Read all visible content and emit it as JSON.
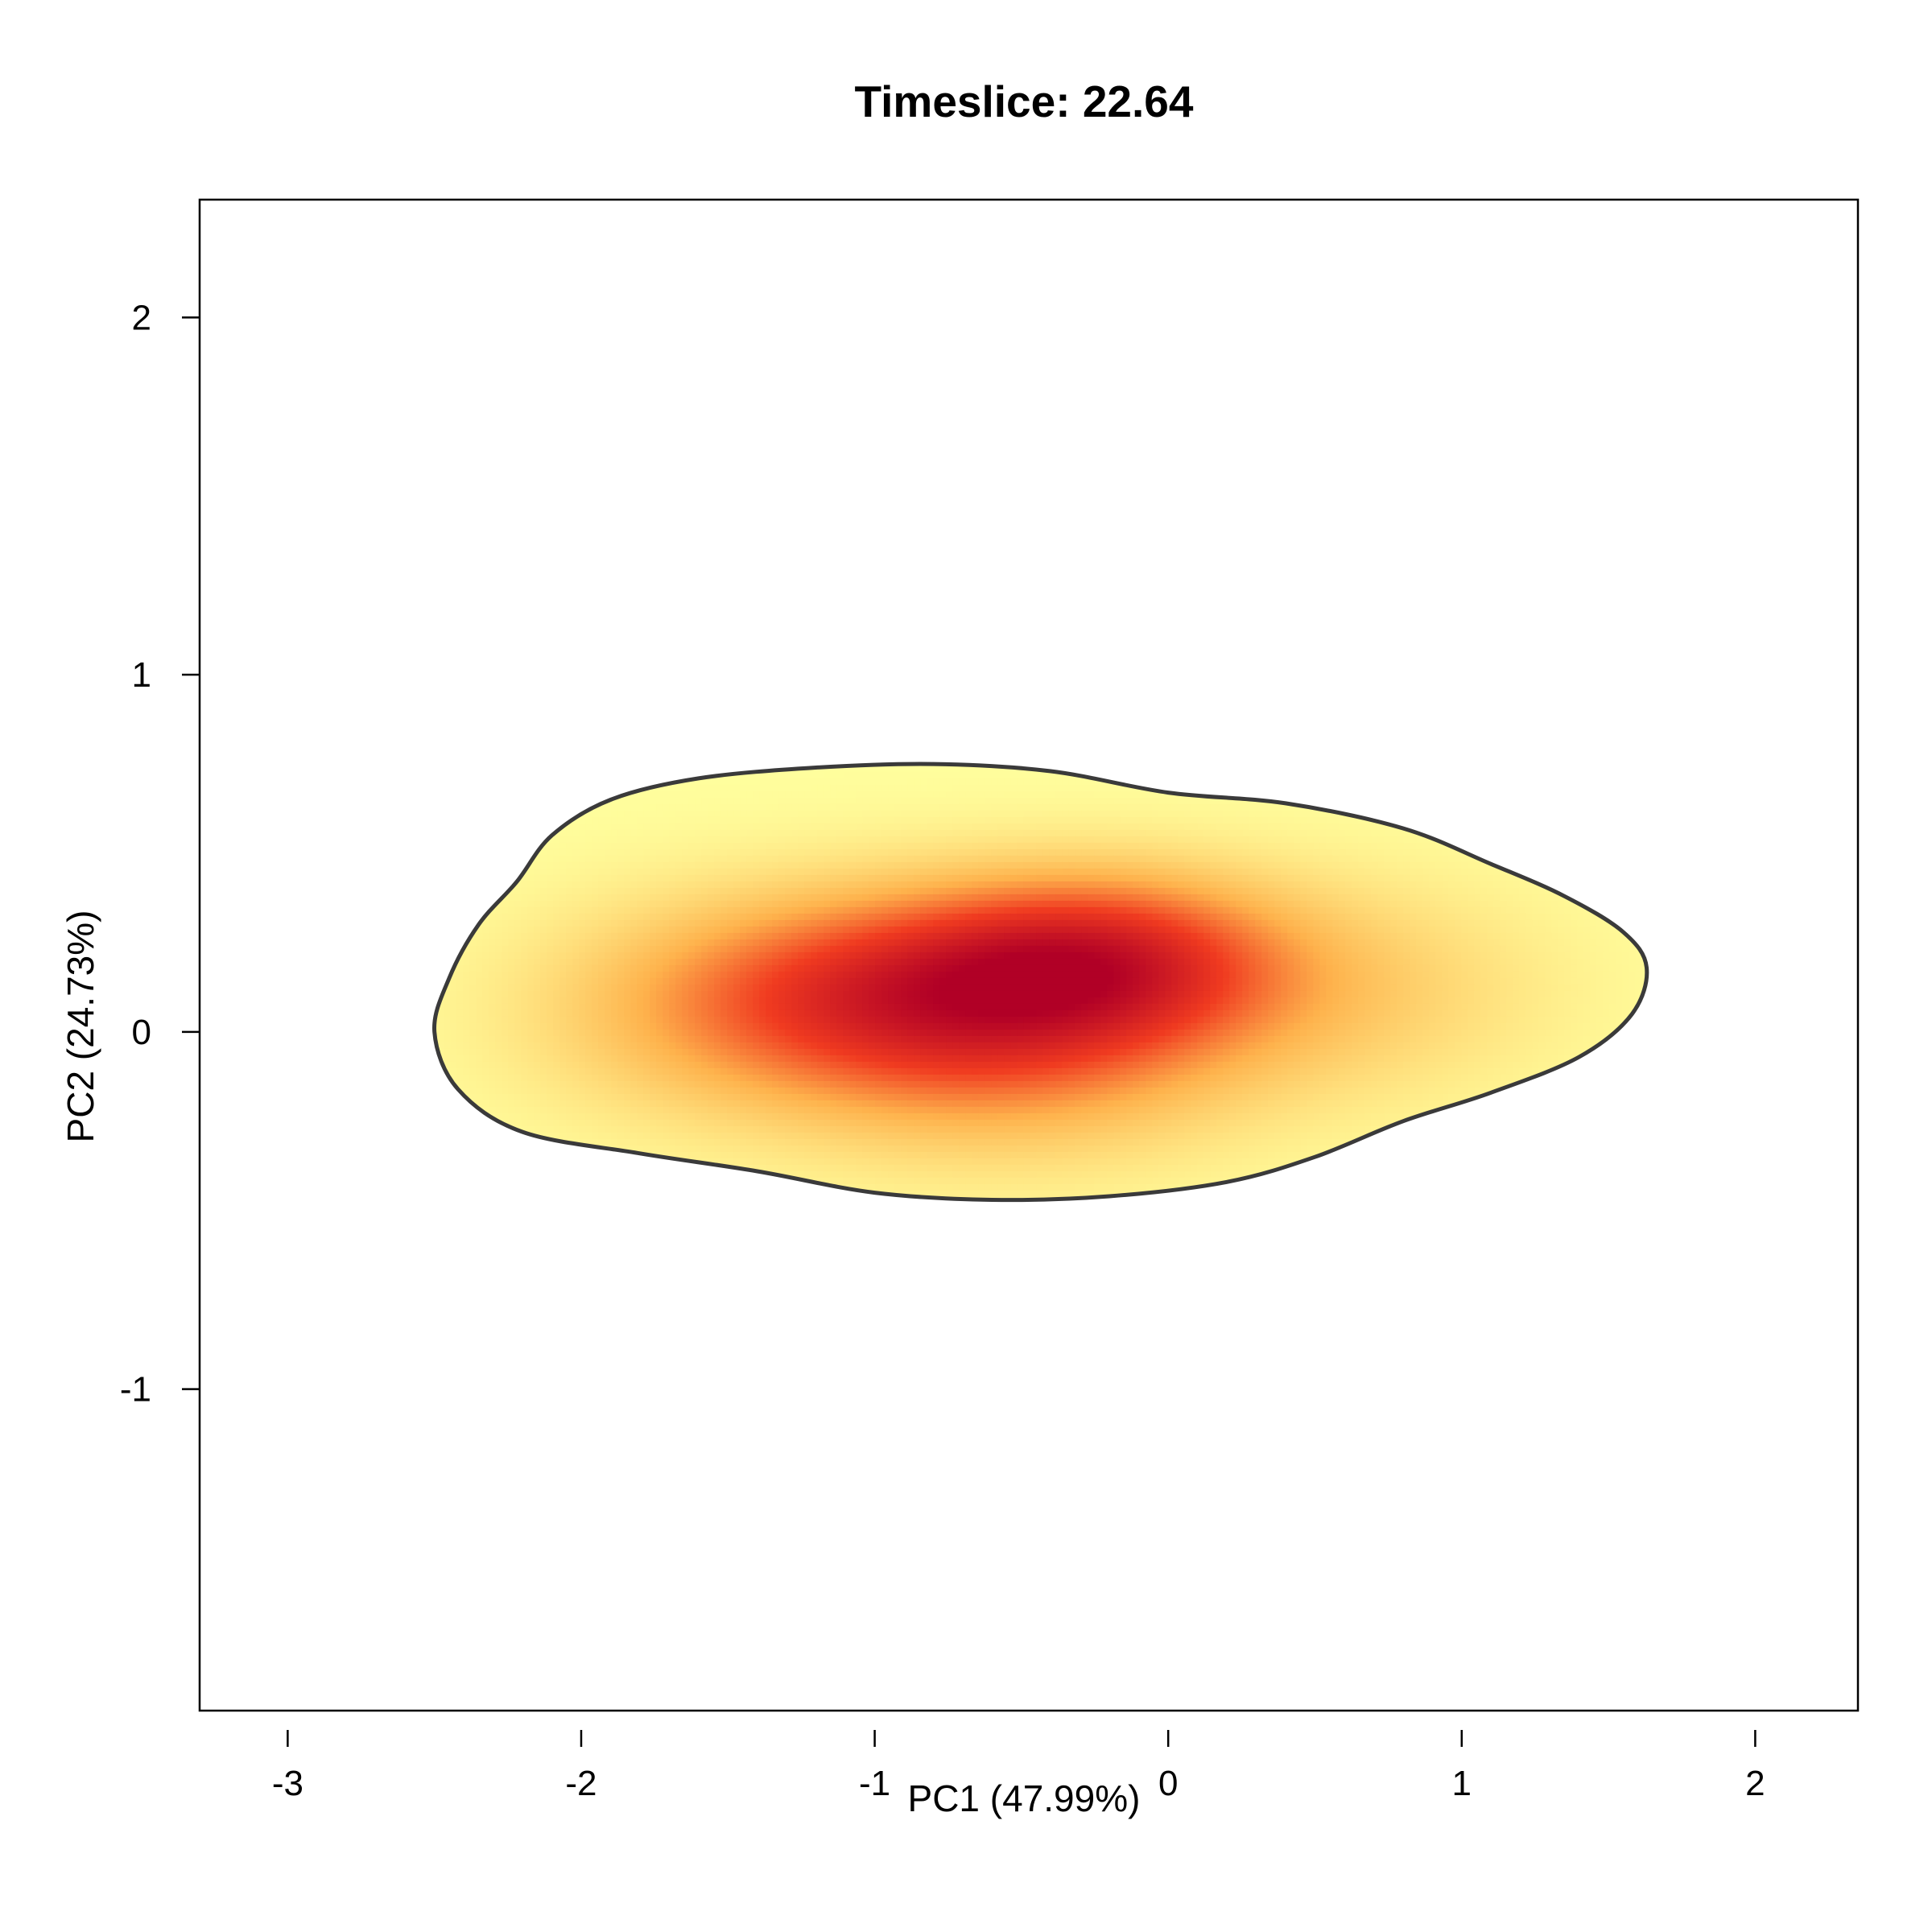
{
  "chart_data": {
    "type": "heatmap",
    "title": "Timeslice: 22.64",
    "xlabel": "PC1 (47.99%)",
    "ylabel": "PC2 (24.73%)",
    "xlim": [
      -3.3,
      2.35
    ],
    "ylim": [
      -1.9,
      2.33
    ],
    "x_ticks": [
      -3,
      -2,
      -1,
      0,
      1,
      2
    ],
    "x_tick_labels": [
      "-3",
      "-2",
      "-1",
      "0",
      "1",
      "2"
    ],
    "y_ticks": [
      -1,
      0,
      1,
      2
    ],
    "y_tick_labels": [
      "-1",
      "0",
      "1",
      "2"
    ],
    "grid": false,
    "legend": "none",
    "density_peak": {
      "x": -0.25,
      "y": 0.2
    },
    "density_components": [
      {
        "x": -0.25,
        "y": 0.2,
        "sx": 0.42,
        "sy": 0.16,
        "weight": 1.0
      },
      {
        "x": -0.95,
        "y": 0.12,
        "sx": 0.5,
        "sy": 0.18,
        "weight": 0.8
      },
      {
        "x": -0.55,
        "y": -0.05,
        "sx": 0.55,
        "sy": 0.2,
        "weight": 0.55
      },
      {
        "x": 0.55,
        "y": 0.12,
        "sx": 0.5,
        "sy": 0.2,
        "weight": 0.25
      },
      {
        "x": -1.6,
        "y": 0.05,
        "sx": 0.45,
        "sy": 0.2,
        "weight": 0.25
      }
    ],
    "outer_contour": [
      [
        -2.5,
        0.0
      ],
      [
        -2.45,
        0.15
      ],
      [
        -2.35,
        0.3
      ],
      [
        -2.22,
        0.42
      ],
      [
        -2.1,
        0.55
      ],
      [
        -1.9,
        0.65
      ],
      [
        -1.6,
        0.71
      ],
      [
        -1.2,
        0.74
      ],
      [
        -0.8,
        0.75
      ],
      [
        -0.4,
        0.73
      ],
      [
        0.0,
        0.67
      ],
      [
        0.4,
        0.64
      ],
      [
        0.8,
        0.57
      ],
      [
        1.1,
        0.47
      ],
      [
        1.35,
        0.38
      ],
      [
        1.55,
        0.28
      ],
      [
        1.63,
        0.18
      ],
      [
        1.58,
        0.05
      ],
      [
        1.4,
        -0.07
      ],
      [
        1.1,
        -0.17
      ],
      [
        0.8,
        -0.25
      ],
      [
        0.5,
        -0.35
      ],
      [
        0.2,
        -0.42
      ],
      [
        -0.2,
        -0.46
      ],
      [
        -0.6,
        -0.47
      ],
      [
        -1.0,
        -0.45
      ],
      [
        -1.4,
        -0.39
      ],
      [
        -1.8,
        -0.34
      ],
      [
        -2.2,
        -0.28
      ],
      [
        -2.42,
        -0.16
      ]
    ],
    "colors": {
      "low": "#FFFF9E",
      "mid_low": "#FEB24C",
      "mid_high": "#F03B20",
      "high": "#B10026",
      "contour_line": "#3A3A3A",
      "frame": "#000000"
    }
  }
}
